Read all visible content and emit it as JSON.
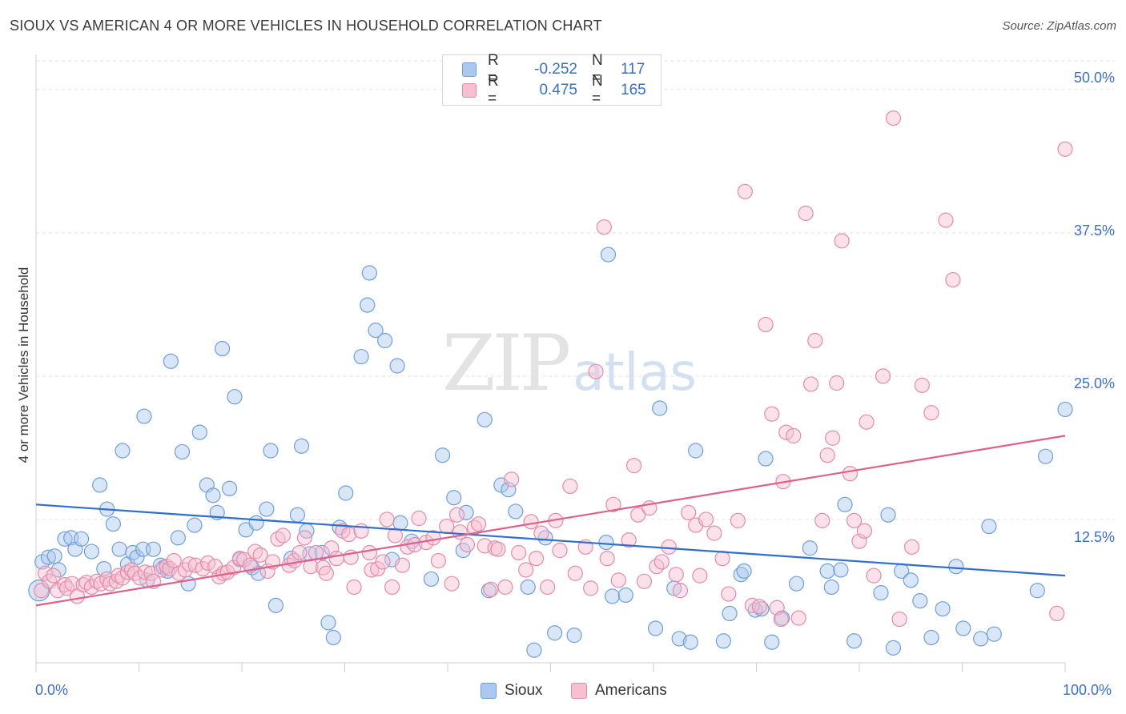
{
  "title": "SIOUX VS AMERICAN 4 OR MORE VEHICLES IN HOUSEHOLD CORRELATION CHART",
  "source": "Source: ZipAtlas.com",
  "watermark": {
    "zip": "ZIP",
    "atlas": "atlas"
  },
  "legend": {
    "rows": [
      {
        "r_label": "R =",
        "r_value": "-0.252",
        "n_label": "N =",
        "n_value": "117",
        "color": "#aac8f0",
        "border": "#6f9fd8"
      },
      {
        "r_label": "R =",
        "r_value": "0.475",
        "n_label": "N =",
        "n_value": "165",
        "color": "#f7bfd0",
        "border": "#e58aa8"
      }
    ]
  },
  "bottom_legend": [
    {
      "label": "Sioux",
      "color": "#aac8f0",
      "border": "#6f9fd8"
    },
    {
      "label": "Americans",
      "color": "#f7bfd0",
      "border": "#e58aa8"
    }
  ],
  "chart_data": {
    "type": "scatter",
    "title": "SIOUX VS AMERICAN 4 OR MORE VEHICLES IN HOUSEHOLD CORRELATION CHART",
    "xlabel": "",
    "ylabel": "4 or more Vehicles in Household",
    "xlim": [
      0,
      100
    ],
    "ylim": [
      0,
      52.5
    ],
    "x_tick_labels": [
      "0.0%",
      "100.0%"
    ],
    "y_ticks": [
      12.5,
      25.0,
      37.5,
      50.0
    ],
    "y_tick_labels": [
      "12.5%",
      "25.0%",
      "37.5%",
      "50.0%"
    ],
    "grid": "horizontal dashed",
    "legend_position": "top-center",
    "series": [
      {
        "name": "Sioux",
        "color": "#6f9fd8",
        "fill": "#aac8f0",
        "trend": {
          "x": [
            0,
            100
          ],
          "y": [
            13.8,
            7.6
          ]
        },
        "points": [
          [
            0.3,
            6.3
          ],
          [
            0.6,
            8.8
          ],
          [
            1.2,
            9.2
          ],
          [
            1.8,
            9.3
          ],
          [
            2.2,
            8.1
          ],
          [
            2.8,
            10.8
          ],
          [
            3.4,
            10.9
          ],
          [
            3.8,
            9.9
          ],
          [
            4.4,
            10.8
          ],
          [
            5.4,
            9.7
          ],
          [
            6.2,
            15.5
          ],
          [
            6.6,
            8.2
          ],
          [
            6.9,
            13.4
          ],
          [
            7.5,
            12.1
          ],
          [
            8.1,
            9.9
          ],
          [
            8.4,
            18.5
          ],
          [
            8.9,
            8.6
          ],
          [
            9.4,
            9.6
          ],
          [
            9.8,
            9.2
          ],
          [
            10.4,
            9.9
          ],
          [
            10.5,
            21.5
          ],
          [
            10.8,
            7.2
          ],
          [
            11.4,
            9.9
          ],
          [
            12.1,
            8.5
          ],
          [
            12.4,
            8.3
          ],
          [
            12.8,
            8.0
          ],
          [
            13.1,
            26.3
          ],
          [
            13.8,
            10.9
          ],
          [
            14.2,
            18.4
          ],
          [
            14.8,
            6.9
          ],
          [
            15.4,
            12.0
          ],
          [
            15.9,
            20.1
          ],
          [
            16.6,
            15.5
          ],
          [
            17.2,
            14.6
          ],
          [
            17.6,
            13.1
          ],
          [
            18.1,
            27.4
          ],
          [
            18.8,
            15.2
          ],
          [
            19.3,
            23.2
          ],
          [
            19.8,
            9.0
          ],
          [
            20.4,
            11.6
          ],
          [
            21.0,
            8.3
          ],
          [
            21.4,
            12.2
          ],
          [
            21.6,
            7.8
          ],
          [
            22.4,
            13.4
          ],
          [
            22.8,
            18.5
          ],
          [
            23.3,
            5.0
          ],
          [
            24.8,
            9.1
          ],
          [
            25.4,
            12.9
          ],
          [
            25.8,
            18.9
          ],
          [
            26.3,
            11.5
          ],
          [
            26.6,
            9.5
          ],
          [
            27.8,
            9.6
          ],
          [
            28.4,
            3.5
          ],
          [
            28.9,
            2.2
          ],
          [
            29.5,
            11.8
          ],
          [
            30.1,
            14.8
          ],
          [
            31.6,
            26.7
          ],
          [
            32.2,
            31.2
          ],
          [
            32.4,
            34.0
          ],
          [
            33.0,
            29.0
          ],
          [
            33.9,
            28.1
          ],
          [
            34.6,
            9.0
          ],
          [
            35.1,
            25.9
          ],
          [
            35.4,
            12.2
          ],
          [
            36.5,
            10.6
          ],
          [
            38.4,
            7.3
          ],
          [
            39.5,
            18.1
          ],
          [
            40.6,
            14.4
          ],
          [
            41.5,
            9.8
          ],
          [
            41.8,
            13.1
          ],
          [
            43.6,
            21.2
          ],
          [
            44.0,
            6.3
          ],
          [
            45.2,
            15.5
          ],
          [
            45.9,
            15.1
          ],
          [
            46.6,
            13.2
          ],
          [
            47.8,
            6.6
          ],
          [
            48.4,
            1.1
          ],
          [
            49.5,
            10.9
          ],
          [
            50.4,
            2.6
          ],
          [
            52.3,
            2.4
          ],
          [
            55.4,
            10.5
          ],
          [
            55.6,
            35.6
          ],
          [
            56.0,
            5.8
          ],
          [
            57.3,
            5.9
          ],
          [
            60.2,
            3.0
          ],
          [
            60.6,
            22.2
          ],
          [
            62.0,
            6.5
          ],
          [
            62.5,
            2.1
          ],
          [
            63.6,
            1.8
          ],
          [
            64.1,
            18.5
          ],
          [
            66.8,
            1.9
          ],
          [
            67.4,
            4.3
          ],
          [
            68.5,
            7.7
          ],
          [
            68.8,
            8.0
          ],
          [
            69.9,
            4.6
          ],
          [
            70.5,
            4.7
          ],
          [
            70.9,
            17.8
          ],
          [
            71.5,
            1.8
          ],
          [
            72.5,
            3.9
          ],
          [
            73.9,
            6.9
          ],
          [
            75.2,
            10.0
          ],
          [
            76.9,
            8.0
          ],
          [
            77.3,
            6.6
          ],
          [
            78.2,
            8.1
          ],
          [
            78.6,
            13.8
          ],
          [
            79.5,
            1.9
          ],
          [
            82.1,
            6.1
          ],
          [
            82.8,
            12.9
          ],
          [
            83.3,
            1.3
          ],
          [
            84.1,
            8.0
          ],
          [
            85.0,
            7.2
          ],
          [
            85.9,
            5.4
          ],
          [
            87.0,
            2.2
          ],
          [
            88.1,
            4.7
          ],
          [
            89.4,
            8.4
          ],
          [
            90.1,
            3.0
          ],
          [
            91.8,
            2.1
          ],
          [
            92.6,
            11.9
          ],
          [
            93.1,
            2.5
          ],
          [
            97.3,
            6.3
          ],
          [
            98.1,
            18.0
          ],
          [
            100.0,
            22.1
          ]
        ]
      },
      {
        "name": "Americans",
        "color": "#e58aa8",
        "fill": "#f7bfd0",
        "trend": {
          "x": [
            0,
            100
          ],
          "y": [
            5.0,
            19.8
          ]
        },
        "points": [
          [
            0.5,
            6.3
          ],
          [
            0.9,
            7.8
          ],
          [
            1.3,
            7.1
          ],
          [
            1.7,
            7.6
          ],
          [
            2.1,
            6.3
          ],
          [
            2.8,
            6.8
          ],
          [
            3.0,
            6.5
          ],
          [
            3.5,
            6.9
          ],
          [
            4.0,
            5.8
          ],
          [
            4.6,
            6.8
          ],
          [
            4.9,
            7.0
          ],
          [
            5.4,
            6.6
          ],
          [
            5.9,
            7.1
          ],
          [
            6.3,
            6.9
          ],
          [
            6.9,
            7.3
          ],
          [
            7.2,
            6.9
          ],
          [
            7.8,
            7.1
          ],
          [
            8.0,
            7.6
          ],
          [
            8.4,
            7.4
          ],
          [
            8.9,
            7.9
          ],
          [
            9.3,
            8.1
          ],
          [
            9.6,
            7.8
          ],
          [
            10.1,
            7.4
          ],
          [
            10.6,
            7.9
          ],
          [
            11.2,
            7.8
          ],
          [
            11.4,
            7.1
          ],
          [
            12.2,
            8.1
          ],
          [
            12.7,
            8.4
          ],
          [
            13.0,
            8.2
          ],
          [
            13.4,
            8.9
          ],
          [
            13.9,
            7.8
          ],
          [
            14.5,
            8.1
          ],
          [
            14.9,
            8.6
          ],
          [
            15.5,
            8.5
          ],
          [
            16.2,
            8.2
          ],
          [
            16.7,
            8.7
          ],
          [
            17.4,
            8.4
          ],
          [
            17.8,
            7.5
          ],
          [
            18.2,
            7.8
          ],
          [
            18.6,
            7.9
          ],
          [
            19.2,
            8.3
          ],
          [
            19.8,
            9.1
          ],
          [
            20.2,
            9.0
          ],
          [
            20.8,
            8.5
          ],
          [
            21.3,
            9.7
          ],
          [
            21.8,
            9.4
          ],
          [
            22.5,
            8.0
          ],
          [
            23.0,
            8.8
          ],
          [
            23.5,
            10.8
          ],
          [
            24.0,
            11.1
          ],
          [
            24.6,
            8.5
          ],
          [
            25.1,
            8.9
          ],
          [
            25.6,
            9.6
          ],
          [
            26.1,
            10.9
          ],
          [
            26.7,
            8.4
          ],
          [
            27.2,
            9.6
          ],
          [
            27.9,
            8.3
          ],
          [
            28.2,
            7.8
          ],
          [
            28.7,
            10.0
          ],
          [
            29.2,
            9.1
          ],
          [
            29.8,
            11.5
          ],
          [
            30.4,
            11.2
          ],
          [
            30.6,
            9.2
          ],
          [
            30.9,
            6.6
          ],
          [
            31.6,
            11.5
          ],
          [
            32.4,
            9.6
          ],
          [
            32.6,
            8.1
          ],
          [
            33.2,
            8.2
          ],
          [
            33.7,
            8.8
          ],
          [
            34.1,
            12.5
          ],
          [
            34.6,
            6.6
          ],
          [
            34.9,
            11.1
          ],
          [
            35.6,
            8.5
          ],
          [
            36.1,
            10.1
          ],
          [
            36.8,
            10.3
          ],
          [
            37.2,
            12.6
          ],
          [
            37.9,
            10.5
          ],
          [
            38.6,
            10.9
          ],
          [
            39.1,
            8.9
          ],
          [
            39.9,
            11.9
          ],
          [
            40.4,
            6.9
          ],
          [
            40.9,
            12.9
          ],
          [
            41.2,
            11.4
          ],
          [
            41.9,
            10.3
          ],
          [
            42.6,
            11.8
          ],
          [
            43.0,
            12.1
          ],
          [
            43.6,
            10.2
          ],
          [
            44.2,
            6.4
          ],
          [
            44.6,
            10.0
          ],
          [
            44.9,
            9.9
          ],
          [
            45.6,
            6.6
          ],
          [
            46.2,
            16.0
          ],
          [
            46.9,
            9.6
          ],
          [
            47.6,
            8.1
          ],
          [
            48.1,
            12.3
          ],
          [
            48.6,
            9.1
          ],
          [
            49.1,
            11.3
          ],
          [
            49.7,
            6.6
          ],
          [
            50.5,
            12.4
          ],
          [
            50.9,
            9.8
          ],
          [
            51.9,
            15.4
          ],
          [
            52.4,
            7.8
          ],
          [
            53.4,
            10.1
          ],
          [
            53.9,
            6.5
          ],
          [
            54.4,
            25.4
          ],
          [
            55.2,
            38.0
          ],
          [
            55.5,
            9.1
          ],
          [
            56.1,
            13.8
          ],
          [
            56.6,
            7.2
          ],
          [
            57.6,
            10.7
          ],
          [
            58.1,
            17.2
          ],
          [
            58.5,
            12.9
          ],
          [
            59.1,
            7.1
          ],
          [
            59.6,
            13.5
          ],
          [
            60.3,
            8.4
          ],
          [
            60.8,
            8.8
          ],
          [
            61.5,
            10.1
          ],
          [
            62.2,
            7.7
          ],
          [
            62.6,
            6.3
          ],
          [
            63.4,
            13.1
          ],
          [
            64.1,
            12.0
          ],
          [
            64.5,
            7.6
          ],
          [
            65.1,
            12.5
          ],
          [
            65.9,
            11.3
          ],
          [
            66.7,
            9.1
          ],
          [
            67.3,
            6.0
          ],
          [
            68.2,
            12.4
          ],
          [
            68.9,
            41.1
          ],
          [
            69.6,
            5.0
          ],
          [
            70.3,
            4.9
          ],
          [
            70.9,
            29.5
          ],
          [
            71.5,
            21.7
          ],
          [
            72.0,
            4.8
          ],
          [
            72.4,
            3.8
          ],
          [
            72.6,
            15.8
          ],
          [
            72.9,
            20.1
          ],
          [
            73.6,
            19.8
          ],
          [
            74.1,
            3.9
          ],
          [
            74.8,
            39.2
          ],
          [
            75.3,
            24.3
          ],
          [
            75.7,
            28.1
          ],
          [
            76.4,
            12.4
          ],
          [
            76.9,
            18.1
          ],
          [
            77.4,
            19.6
          ],
          [
            77.8,
            24.4
          ],
          [
            78.3,
            36.8
          ],
          [
            79.1,
            16.5
          ],
          [
            79.5,
            12.4
          ],
          [
            80.0,
            10.6
          ],
          [
            80.5,
            11.5
          ],
          [
            80.7,
            21.0
          ],
          [
            81.4,
            7.6
          ],
          [
            82.3,
            25.0
          ],
          [
            83.3,
            47.5
          ],
          [
            83.9,
            3.8
          ],
          [
            85.1,
            10.1
          ],
          [
            86.1,
            24.2
          ],
          [
            87.0,
            21.8
          ],
          [
            88.4,
            38.6
          ],
          [
            89.1,
            33.4
          ],
          [
            100.0,
            44.8
          ],
          [
            99.2,
            4.3
          ]
        ]
      }
    ]
  }
}
